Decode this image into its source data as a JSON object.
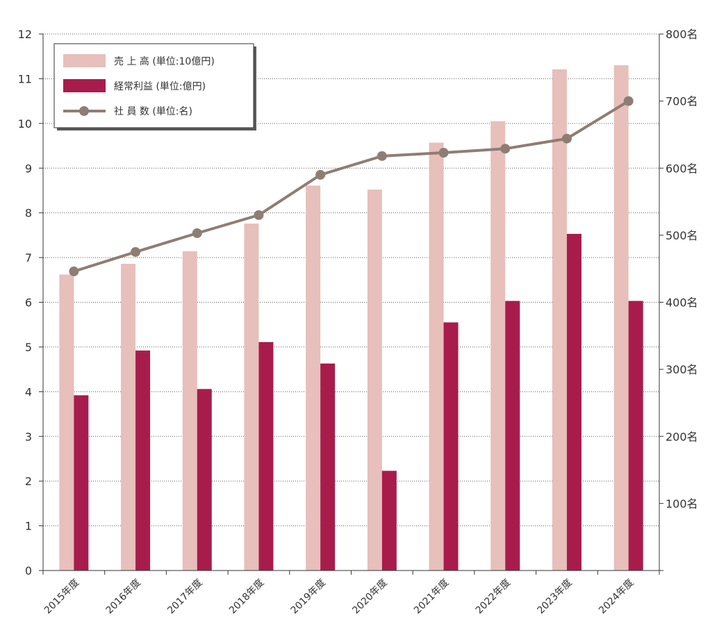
{
  "chart_data": {
    "type": "bar+line",
    "categories": [
      "2015年度",
      "2016年度",
      "2017年度",
      "2018年度",
      "2019年度",
      "2020年度",
      "2021年度",
      "2022年度",
      "2023年度",
      "2024年度"
    ],
    "series": [
      {
        "name": "売 上 高 (単位:10億円)",
        "type": "bar",
        "axis": "left",
        "color": "#e7bfbb",
        "values": [
          6.62,
          6.86,
          7.14,
          7.76,
          8.61,
          8.52,
          9.57,
          10.05,
          11.21,
          11.3
        ]
      },
      {
        "name": "経常利益 (単位:億円)",
        "type": "bar",
        "axis": "left",
        "color": "#a81c4c",
        "values": [
          3.92,
          4.92,
          4.06,
          5.11,
          4.63,
          2.23,
          5.55,
          6.03,
          7.53,
          6.03
        ]
      },
      {
        "name": "社 員 数 (単位:名)",
        "type": "line",
        "axis": "right",
        "color": "#8f7d74",
        "values": [
          446,
          475,
          503,
          530,
          590,
          618,
          623,
          629,
          644,
          700
        ]
      }
    ],
    "yaxis_left": {
      "min": 0,
      "max": 12,
      "ticks": [
        "0",
        "1",
        "2",
        "3",
        "4",
        "5",
        "6",
        "7",
        "8",
        "9",
        "10",
        "11",
        "12"
      ]
    },
    "yaxis_right": {
      "min": 0,
      "max": 800,
      "ticks": [
        "",
        "100名",
        "200名",
        "300名",
        "400名",
        "500名",
        "600名",
        "700名",
        "800名"
      ]
    },
    "grid": true,
    "legend": "top-left"
  }
}
